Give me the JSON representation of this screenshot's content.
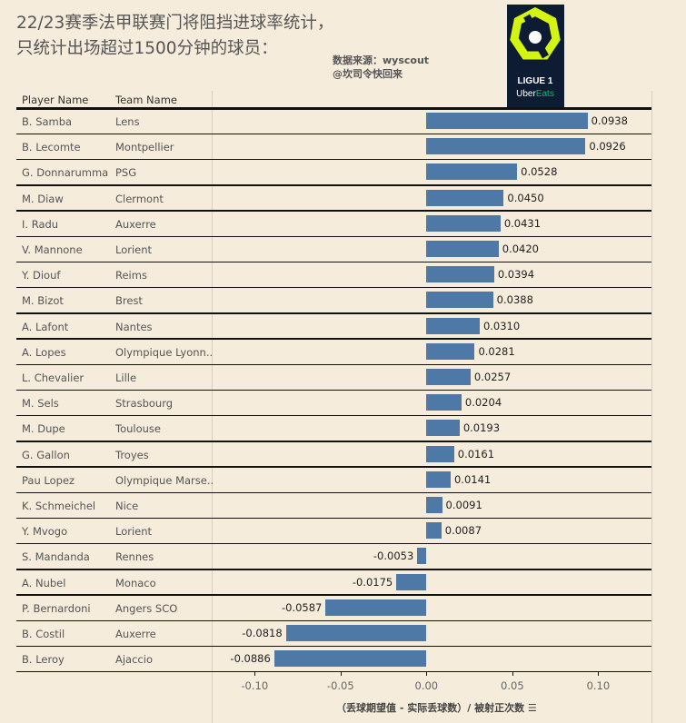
{
  "title": "22/23赛季法甲联赛门将阻挡进球率统计，\n只统计出场超过1500分钟的球员：",
  "source": "数据来源：wyscout\n@坎司令快回来",
  "logo": {
    "text": "LIGUE 1",
    "sponsor_a": "Uber",
    "sponsor_b": "Eats",
    "colors": {
      "bg": "#0d1b33",
      "lime": "#d4f511",
      "green": "#06c167"
    }
  },
  "chart_data": {
    "type": "bar",
    "orientation": "horizontal",
    "columns": [
      "Player Name",
      "Team Name"
    ],
    "xlabel": "（丢球期望值 - 实际丢球数）/ 被射正次数",
    "xlim": [
      -0.125,
      0.131
    ],
    "xticks": [
      "-0.10",
      "-0.05",
      "0.00",
      "0.05",
      "0.10"
    ],
    "xtick_values": [
      -0.1,
      -0.05,
      0,
      0.05,
      0.1
    ],
    "bar_color": "#4e79a7",
    "rows": [
      {
        "player": "B. Samba",
        "team": "Lens",
        "value": 0.0938
      },
      {
        "player": "B. Lecomte",
        "team": "Montpellier",
        "value": 0.0926
      },
      {
        "player": "G. Donnarumma",
        "team": "PSG",
        "value": 0.0528
      },
      {
        "player": "M. Diaw",
        "team": "Clermont",
        "value": 0.045
      },
      {
        "player": "I. Radu",
        "team": "Auxerre",
        "value": 0.0431
      },
      {
        "player": "V. Mannone",
        "team": "Lorient",
        "value": 0.042
      },
      {
        "player": "Y. Diouf",
        "team": "Reims",
        "value": 0.0394
      },
      {
        "player": "M. Bizot",
        "team": "Brest",
        "value": 0.0388
      },
      {
        "player": "A. Lafont",
        "team": "Nantes",
        "value": 0.031
      },
      {
        "player": "A. Lopes",
        "team": "Olympique Lyonn..",
        "value": 0.0281
      },
      {
        "player": "L. Chevalier",
        "team": "Lille",
        "value": 0.0257
      },
      {
        "player": "M. Sels",
        "team": "Strasbourg",
        "value": 0.0204
      },
      {
        "player": "M. Dupe",
        "team": "Toulouse",
        "value": 0.0193
      },
      {
        "player": "G. Gallon",
        "team": "Troyes",
        "value": 0.0161
      },
      {
        "player": "Pau Lopez",
        "team": "Olympique Marse..",
        "value": 0.0141
      },
      {
        "player": "K. Schmeichel",
        "team": "Nice",
        "value": 0.0091
      },
      {
        "player": "Y. Mvogo",
        "team": "Lorient",
        "value": 0.0087
      },
      {
        "player": "S. Mandanda",
        "team": "Rennes",
        "value": -0.0053
      },
      {
        "player": "A. Nubel",
        "team": "Monaco",
        "value": -0.0175
      },
      {
        "player": "P. Bernardoni",
        "team": "Angers SCO",
        "value": -0.0587
      },
      {
        "player": "B. Costil",
        "team": "Auxerre",
        "value": -0.0818
      },
      {
        "player": "B. Leroy",
        "team": "Ajaccio",
        "value": -0.0886
      }
    ]
  }
}
